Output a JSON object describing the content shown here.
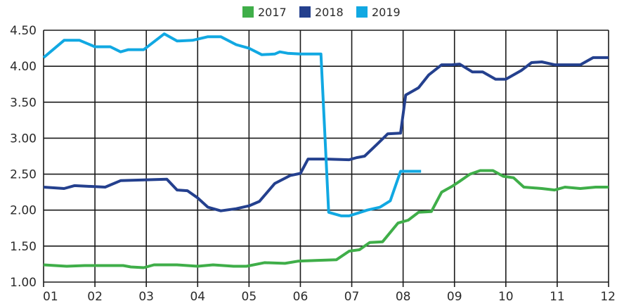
{
  "chart_data": {
    "type": "line",
    "title": "",
    "xlabel": "",
    "ylabel": "",
    "x_ticks": [
      "01",
      "02",
      "03",
      "04",
      "05",
      "06",
      "07",
      "08",
      "09",
      "10",
      "11",
      "12"
    ],
    "y_ticks": [
      "1.00",
      "1.50",
      "2.00",
      "2.50",
      "3.00",
      "3.50",
      "4.00",
      "4.50"
    ],
    "xlim": [
      1,
      12
    ],
    "ylim": [
      1.0,
      4.5
    ],
    "grid": true,
    "legend_position": "top-center",
    "series": [
      {
        "name": "2017",
        "color": "#3fae49",
        "x": [
          1.0,
          1.45,
          1.8,
          2.2,
          2.55,
          2.7,
          2.95,
          3.15,
          3.6,
          4.0,
          4.3,
          4.7,
          4.95,
          5.3,
          5.7,
          5.95,
          6.3,
          6.7,
          6.95,
          7.15,
          7.35,
          7.6,
          7.9,
          8.1,
          8.3,
          8.55,
          8.75,
          8.95,
          9.1,
          9.3,
          9.5,
          9.75,
          9.95,
          10.15,
          10.35,
          10.7,
          10.95,
          11.15,
          11.45,
          11.75,
          12.0
        ],
        "y": [
          1.24,
          1.22,
          1.23,
          1.23,
          1.23,
          1.21,
          1.2,
          1.24,
          1.24,
          1.22,
          1.24,
          1.22,
          1.22,
          1.27,
          1.26,
          1.29,
          1.3,
          1.31,
          1.43,
          1.45,
          1.55,
          1.56,
          1.82,
          1.86,
          1.97,
          1.98,
          2.25,
          2.33,
          2.4,
          2.5,
          2.55,
          2.55,
          2.47,
          2.45,
          2.32,
          2.3,
          2.28,
          2.32,
          2.3,
          2.32,
          2.32
        ]
      },
      {
        "name": "2018",
        "color": "#24408e",
        "x": [
          1.0,
          1.4,
          1.6,
          2.2,
          2.5,
          2.95,
          3.4,
          3.6,
          3.8,
          4.0,
          4.2,
          4.45,
          4.75,
          5.0,
          5.2,
          5.5,
          5.8,
          6.0,
          6.15,
          6.5,
          6.95,
          7.1,
          7.25,
          7.5,
          7.7,
          7.95,
          8.05,
          8.3,
          8.5,
          8.75,
          8.95,
          9.1,
          9.35,
          9.55,
          9.8,
          10.0,
          10.3,
          10.5,
          10.7,
          10.95,
          11.15,
          11.45,
          11.7,
          12.0
        ],
        "y": [
          2.32,
          2.3,
          2.34,
          2.32,
          2.41,
          2.42,
          2.43,
          2.28,
          2.27,
          2.17,
          2.04,
          1.99,
          2.02,
          2.06,
          2.12,
          2.37,
          2.48,
          2.51,
          2.71,
          2.71,
          2.7,
          2.73,
          2.75,
          2.92,
          3.06,
          3.07,
          3.6,
          3.7,
          3.88,
          4.02,
          4.02,
          4.03,
          3.92,
          3.92,
          3.82,
          3.82,
          3.94,
          4.05,
          4.06,
          4.02,
          4.02,
          4.02,
          4.12,
          4.12
        ]
      },
      {
        "name": "2019",
        "color": "#11a8e2",
        "x": [
          1.0,
          1.4,
          1.7,
          2.0,
          2.3,
          2.5,
          2.65,
          2.95,
          3.35,
          3.6,
          3.9,
          4.2,
          4.45,
          4.75,
          5.0,
          5.25,
          5.5,
          5.6,
          5.75,
          6.0,
          6.4,
          6.55,
          6.8,
          6.95,
          7.3,
          7.55,
          7.75,
          7.95,
          8.35
        ],
        "y": [
          4.12,
          4.36,
          4.36,
          4.27,
          4.27,
          4.2,
          4.23,
          4.23,
          4.45,
          4.35,
          4.36,
          4.41,
          4.41,
          4.3,
          4.25,
          4.16,
          4.17,
          4.2,
          4.18,
          4.17,
          4.17,
          1.97,
          1.92,
          1.92,
          2.0,
          2.04,
          2.13,
          2.54,
          2.54
        ]
      }
    ]
  }
}
